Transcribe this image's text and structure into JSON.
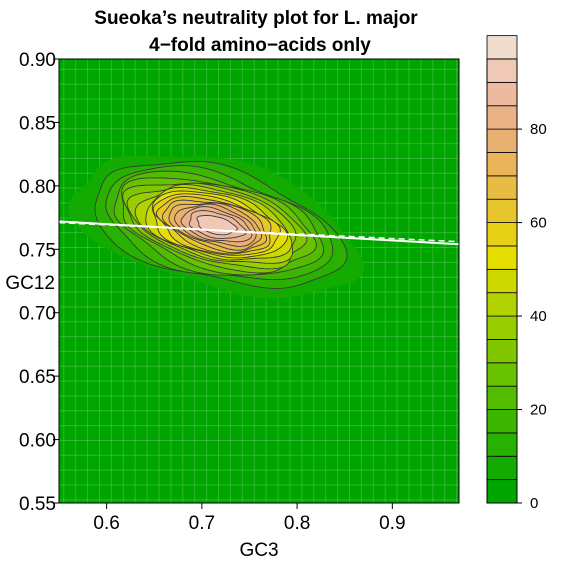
{
  "chart_data": {
    "type": "heatmap",
    "subtype": "filled-contour density",
    "title": "Sueoka’s neutrality plot for L. major",
    "subtitle": "4−fold amino−acids only",
    "xlabel": "GC3",
    "ylabel": "GC12",
    "xlim": [
      0.55,
      0.97
    ],
    "ylim": [
      0.55,
      0.9
    ],
    "x_ticks": [
      0.6,
      0.7,
      0.8,
      0.9
    ],
    "x_tick_labels": [
      "0.6",
      "0.7",
      "0.8",
      "0.9"
    ],
    "y_ticks": [
      0.55,
      0.6,
      0.65,
      0.7,
      0.75,
      0.8,
      0.85,
      0.9
    ],
    "y_tick_labels": [
      "0.55",
      "0.60",
      "0.65",
      "0.70",
      "0.75",
      "0.80",
      "0.85",
      "0.90"
    ],
    "grid": true,
    "density_peak": {
      "x": 0.715,
      "y": 0.769,
      "max": 95
    },
    "contour_levels": [
      5,
      10,
      15,
      20,
      25,
      30,
      35,
      40,
      45,
      50,
      55,
      60,
      65,
      70,
      75,
      80,
      85,
      90,
      95
    ],
    "regression_line": {
      "x": [
        0.55,
        0.97
      ],
      "y": [
        0.772,
        0.754
      ],
      "color": "#ffffff",
      "style": "solid"
    },
    "regression_line_dashed": {
      "x": [
        0.55,
        0.97
      ],
      "y": [
        0.771,
        0.756
      ],
      "color": "#ffffff",
      "style": "dashed"
    },
    "colorbar": {
      "min": 0,
      "max": 95,
      "step": 5,
      "ticks": [
        0,
        20,
        40,
        60,
        80
      ],
      "tick_labels": [
        "0",
        "20",
        "40",
        "60",
        "80"
      ],
      "colors": [
        "#00a600",
        "#13ab00",
        "#28b100",
        "#3cb600",
        "#52bc00",
        "#68c200",
        "#80c700",
        "#98cd00",
        "#b2d300",
        "#ccd800",
        "#e6df00",
        "#e6d116",
        "#e7c52d",
        "#e8bb43",
        "#e9b45a",
        "#eab071",
        "#ecb287",
        "#edba9f",
        "#efc8b6",
        "#f0dccd",
        "#f2f2f2"
      ]
    }
  }
}
